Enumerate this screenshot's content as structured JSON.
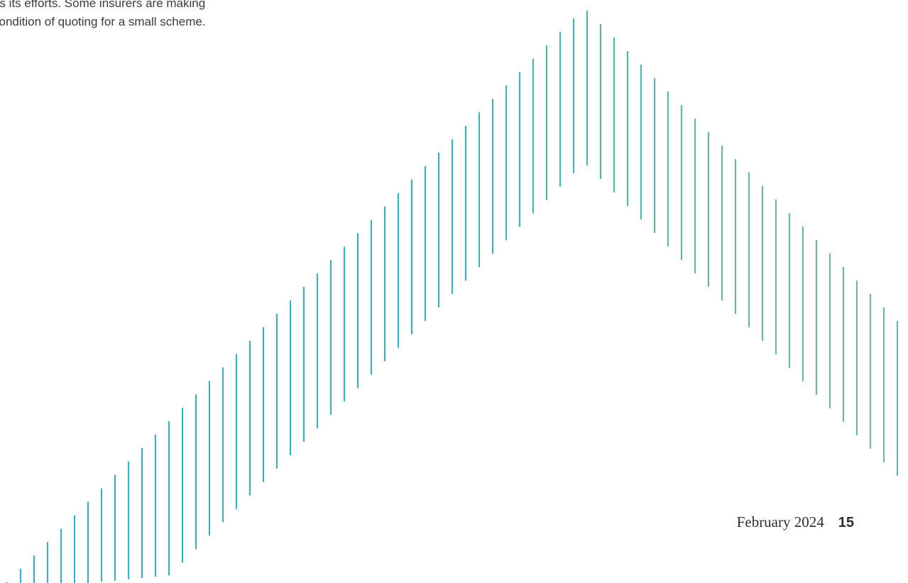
{
  "body": {
    "lines": [
      "us its efforts. Some insurers are making",
      "condition of quoting for a small scheme."
    ]
  },
  "decoration": {
    "rising_color": "#2bb3cc",
    "falling_color": "#5bbf9a"
  },
  "footer": {
    "date": "February 2024",
    "page_number": "15"
  }
}
